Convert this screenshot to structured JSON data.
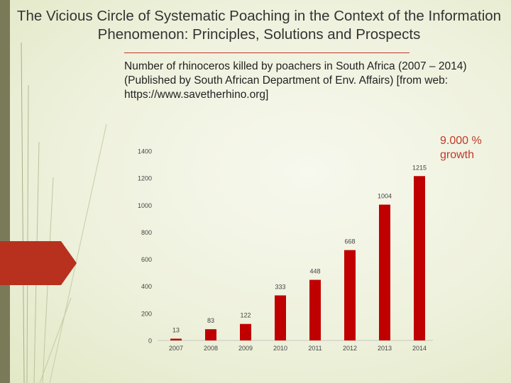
{
  "slide": {
    "title": "The Vicious Circle of Systematic Poaching in the Context of the Information Phenomenon: Principles, Solutions and Prospects",
    "subtitle": "Number of rhinoceros killed by poachers in South Africa (2007 – 2014) (Published by South African Department of Env. Affairs) [from web: https://www.savetherhino.org]",
    "annotation": "9.000 % growth"
  },
  "colors": {
    "bar": "#c00000",
    "accent": "#c0392b",
    "tab": "#b7311e",
    "sidebar": "#7a7a58"
  },
  "chart_data": {
    "type": "bar",
    "categories": [
      "2007",
      "2008",
      "2009",
      "2010",
      "2011",
      "2012",
      "2013",
      "2014"
    ],
    "values": [
      13,
      83,
      122,
      333,
      448,
      668,
      1004,
      1215
    ],
    "data_labels": [
      "13",
      "83",
      "122",
      "333",
      "448",
      "668",
      "1004",
      "1215"
    ],
    "yticks": [
      0,
      200,
      400,
      600,
      800,
      1000,
      1200,
      1400
    ],
    "ylim": [
      0,
      1400
    ],
    "grid": false,
    "legend": "none",
    "title": "",
    "xlabel": "",
    "ylabel": ""
  }
}
